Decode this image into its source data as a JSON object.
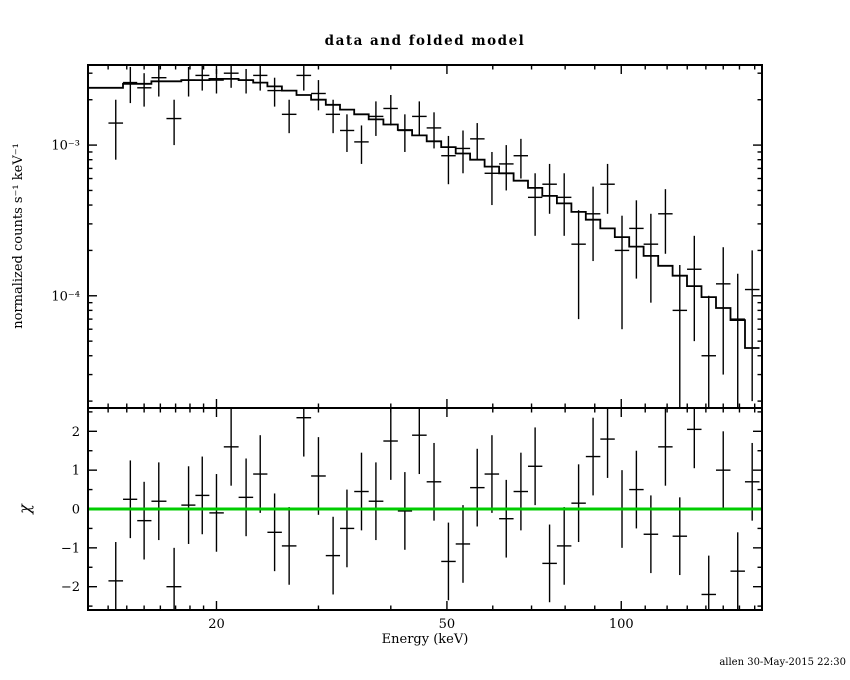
{
  "page": {
    "background": "#ffffff",
    "foreground": "#000000"
  },
  "footer": {
    "timestamp": "allen 30-May-2015 22:30"
  },
  "chart_data": {
    "type": "scatter",
    "title": "data and folded model",
    "xlabel": "Energy (keV)",
    "xscale": "log",
    "xlim": [
      12,
      175
    ],
    "xticks_major": [
      20,
      50,
      100
    ],
    "xticks_minor": [
      13,
      14,
      15,
      16,
      17,
      18,
      19,
      30,
      40,
      60,
      70,
      80,
      90,
      110,
      120,
      130,
      140,
      150,
      160,
      170
    ],
    "energies_kev": [
      13.4,
      14.2,
      15.0,
      15.9,
      16.9,
      17.9,
      18.9,
      20.0,
      21.2,
      22.5,
      23.8,
      25.2,
      26.7,
      28.3,
      30.0,
      31.8,
      33.6,
      35.6,
      37.7,
      40.0,
      42.3,
      44.8,
      47.5,
      50.3,
      53.3,
      56.4,
      59.8,
      63.3,
      67.1,
      71.0,
      75.2,
      79.7,
      84.4,
      89.4,
      94.7,
      100.3,
      106.2,
      112.5,
      119.2,
      126.2,
      133.7,
      141.6,
      150.0,
      158.9,
      168.3
    ],
    "bin_halfwidth_ratio": 1.0295,
    "panels": [
      {
        "name": "spectrum",
        "ylabel": "normalized counts s⁻¹ keV⁻¹",
        "yscale": "log",
        "ylim": [
          1.8e-05,
          0.0034
        ],
        "yticks_major": [
          0.0001,
          0.001
        ],
        "ytick_labels": [
          "10⁻⁴",
          "10⁻³"
        ],
        "series": [
          {
            "name": "data",
            "marker": "cross-errorbar",
            "color": "#000000",
            "y": [
              0.0014,
              0.0026,
              0.0024,
              0.0028,
              0.0015,
              0.0027,
              0.0029,
              0.0027,
              0.003,
              0.0027,
              0.0029,
              0.0023,
              0.0016,
              0.0029,
              0.0022,
              0.0016,
              0.00125,
              0.00105,
              0.00155,
              0.00175,
              0.00125,
              0.00155,
              0.0013,
              0.00085,
              0.00095,
              0.0011,
              0.00065,
              0.00075,
              0.00085,
              0.00045,
              0.00055,
              0.00045,
              0.00022,
              0.00035,
              0.00055,
              0.0002,
              0.00028,
              0.00022,
              0.00035,
              8e-05,
              0.00015,
              4e-05,
              0.00012,
              7e-05,
              0.00011
            ],
            "yerr": [
              0.0006,
              0.0007,
              0.0006,
              0.0007,
              0.0005,
              0.0006,
              0.0006,
              0.0005,
              0.0006,
              0.0005,
              0.0006,
              0.0005,
              0.0004,
              0.0006,
              0.0005,
              0.0004,
              0.00035,
              0.0003,
              0.0004,
              0.0004,
              0.00035,
              0.0004,
              0.00035,
              0.0003,
              0.0003,
              0.0003,
              0.00025,
              0.00025,
              0.00025,
              0.0002,
              0.0002,
              0.0002,
              0.00015,
              0.00018,
              0.0002,
              0.00014,
              0.00015,
              0.00013,
              0.00016,
              8e-05,
              0.0001,
              6e-05,
              9e-05,
              7e-05,
              9e-05
            ]
          },
          {
            "name": "folded model",
            "style": "histogram-step",
            "color": "#000000",
            "y": [
              0.0024,
              0.00255,
              0.00255,
              0.00265,
              0.00265,
              0.0027,
              0.0027,
              0.00275,
              0.00275,
              0.0027,
              0.0026,
              0.00245,
              0.0023,
              0.00215,
              0.002,
              0.00185,
              0.00172,
              0.0016,
              0.00148,
              0.00137,
              0.00126,
              0.00116,
              0.00106,
              0.00097,
              0.00088,
              0.0008,
              0.00072,
              0.00065,
              0.00058,
              0.00052,
              0.00046,
              0.00041,
              0.00036,
              0.00032,
              0.00028,
              0.000245,
              0.000212,
              0.000184,
              0.000158,
              0.000136,
              0.000116,
              9.8e-05,
              8.3e-05,
              6.9e-05,
              4.5e-05
            ]
          }
        ]
      },
      {
        "name": "residuals",
        "ylabel": "χ",
        "yscale": "linear",
        "ylim": [
          -2.6,
          2.6
        ],
        "yticks_major": [
          -2,
          -1,
          0,
          1,
          2
        ],
        "ytick_labels": [
          "−2",
          "−1",
          "0",
          "1",
          "2"
        ],
        "yticks_minor": [
          -2.5,
          -1.5,
          -0.5,
          0.5,
          1.5,
          2.5
        ],
        "series": [
          {
            "name": "chi",
            "marker": "cross-errorbar",
            "color": "#000000",
            "y": [
              -1.85,
              0.25,
              -0.3,
              0.2,
              -2.0,
              0.1,
              0.35,
              -0.1,
              1.6,
              0.3,
              0.9,
              -0.6,
              -0.95,
              2.35,
              0.85,
              -1.2,
              -0.5,
              0.45,
              0.2,
              1.75,
              -0.05,
              1.9,
              0.7,
              -1.35,
              -0.9,
              0.55,
              0.9,
              -0.25,
              0.45,
              1.1,
              -1.4,
              -0.95,
              0.15,
              1.35,
              1.8,
              0.0,
              0.5,
              -0.65,
              1.6,
              -0.7,
              2.05,
              -2.2,
              1.0,
              -1.6,
              0.7
            ],
            "yerr": 1.0
          },
          {
            "name": "zero line",
            "style": "hline",
            "y0": 0,
            "color": "#00cc00"
          }
        ]
      }
    ]
  }
}
